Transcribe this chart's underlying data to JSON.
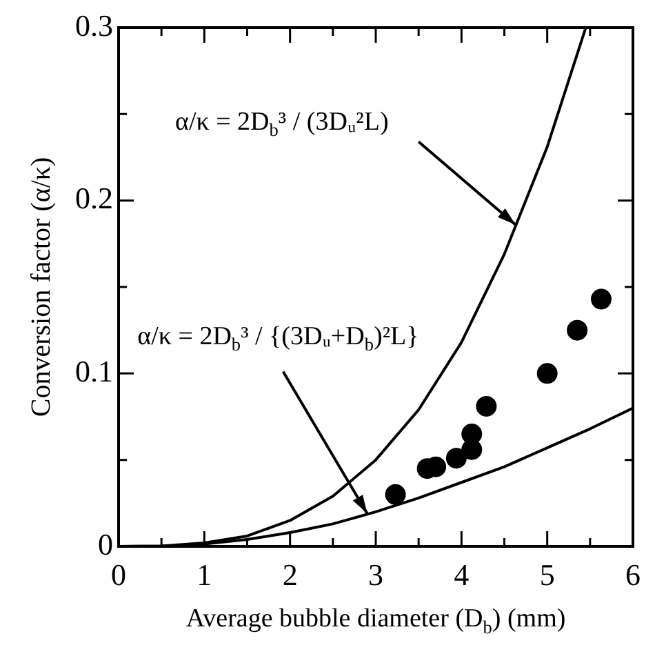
{
  "chart_data": {
    "type": "scatter",
    "xlabel": "Average bubble diameter (D$_{b}$) (mm)",
    "ylabel": "Conversion factor (α/κ)",
    "xlim": [
      0,
      6
    ],
    "ylim": [
      0,
      0.3
    ],
    "xticks": [
      0,
      {
        "value": 0.5,
        "label": null
      },
      1,
      {
        "value": 1.5,
        "label": null
      },
      2,
      {
        "value": 2.5,
        "label": null
      },
      3,
      {
        "value": 3.5,
        "label": null
      },
      4,
      {
        "value": 4.5,
        "label": null
      },
      5,
      {
        "value": 5.5,
        "label": null
      },
      6
    ],
    "yticks": [
      0,
      {
        "value": 0.05,
        "label": null
      },
      0.1,
      {
        "value": 0.15,
        "label": null
      },
      0.2,
      {
        "value": 0.25,
        "label": null
      },
      0.3
    ],
    "grid": false,
    "legend": false,
    "series": [
      {
        "type": "scatter",
        "marker": "circle",
        "color": "#000000",
        "x": [
          3.23,
          3.6,
          3.7,
          3.94,
          4.12,
          4.12,
          4.29,
          5.0,
          5.35,
          5.63
        ],
        "values": [
          0.03,
          0.045,
          0.046,
          0.051,
          0.056,
          0.065,
          0.081,
          0.1,
          0.125,
          0.143
        ]
      },
      {
        "type": "line",
        "marker": "none",
        "color": "#000000",
        "x": [
          0,
          0.5,
          1,
          1.5,
          2,
          2.5,
          3,
          3.5,
          4,
          4.5,
          5,
          5.45
        ],
        "values": [
          0,
          0.0002,
          0.002,
          0.006,
          0.015,
          0.029,
          0.05,
          0.079,
          0.118,
          0.169,
          0.231,
          0.3
        ]
      },
      {
        "type": "line",
        "marker": "none",
        "color": "#000000",
        "x": [
          0,
          0.5,
          1,
          1.5,
          2,
          2.5,
          3,
          3.5,
          4,
          4.5,
          5,
          5.5,
          6
        ],
        "values": [
          0,
          0.0002,
          0.0014,
          0.004,
          0.008,
          0.013,
          0.02,
          0.028,
          0.037,
          0.046,
          0.057,
          0.068,
          0.08
        ]
      }
    ],
    "annotations": [
      {
        "text": "α/κ = 2D$_{b}$³ / (3Dᵤ²L)",
        "x": 4.63,
        "y": 0.186
      },
      {
        "text": "α/κ = 2D$_{b}$³ / {(3Dᵤ+D$_{b}$)²L}",
        "x": 2.9,
        "y": 0.019
      }
    ]
  }
}
